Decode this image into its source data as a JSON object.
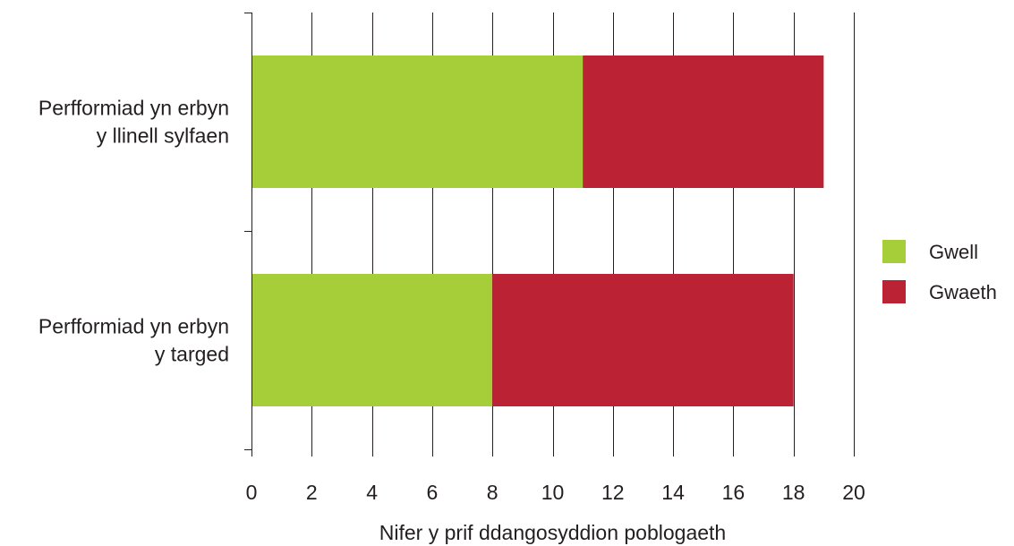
{
  "chart_data": {
    "type": "bar",
    "orientation": "horizontal",
    "stacked": true,
    "categories": [
      [
        "Perfformiad yn erbyn",
        "y llinell sylfaen"
      ],
      [
        "Perfformiad yn erbyn",
        "y targed"
      ]
    ],
    "series": [
      {
        "name": "Gwell",
        "values": [
          11,
          8
        ],
        "color": "#a6ce39"
      },
      {
        "name": "Gwaeth",
        "values": [
          8,
          10
        ],
        "color": "#bb2233"
      }
    ],
    "xlabel": "Nifer y prif ddangosyddion poblogaeth",
    "ylabel": "",
    "xlim": [
      0,
      20
    ],
    "xticks": [
      0,
      2,
      4,
      6,
      8,
      10,
      12,
      14,
      16,
      18,
      20
    ],
    "grid": "vertical",
    "legend_position": "right"
  }
}
